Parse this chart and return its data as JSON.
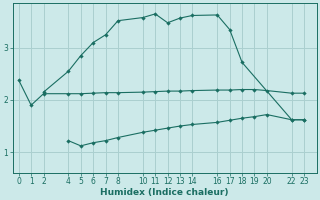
{
  "xlabel": "Humidex (Indice chaleur)",
  "bg_color": "#cce9e9",
  "grid_color": "#aacfcf",
  "line_color": "#1a6e62",
  "xticks": [
    0,
    1,
    2,
    4,
    5,
    6,
    7,
    8,
    10,
    11,
    12,
    13,
    14,
    16,
    17,
    18,
    19,
    20,
    22,
    23
  ],
  "yticks": [
    1,
    2,
    3
  ],
  "ylim": [
    0.6,
    3.85
  ],
  "xlim": [
    -0.5,
    24.0
  ],
  "upper_x": [
    2,
    4,
    5,
    6,
    7,
    8,
    10,
    11,
    12,
    13,
    14,
    16,
    17,
    18,
    22,
    23
  ],
  "upper_y": [
    2.15,
    2.55,
    2.85,
    3.1,
    3.25,
    3.52,
    3.58,
    3.65,
    3.48,
    3.57,
    3.62,
    3.63,
    3.35,
    2.72,
    1.62,
    1.62
  ],
  "middle_x": [
    0,
    1,
    2,
    4,
    5,
    6,
    7,
    8,
    10,
    11,
    12,
    13,
    14,
    16,
    17,
    18,
    19,
    20,
    22,
    23
  ],
  "middle_y": [
    2.38,
    1.9,
    2.12,
    2.12,
    2.12,
    2.13,
    2.14,
    2.14,
    2.15,
    2.16,
    2.17,
    2.17,
    2.18,
    2.19,
    2.19,
    2.2,
    2.2,
    2.18,
    2.13,
    2.13
  ],
  "lower_x": [
    4,
    5,
    6,
    7,
    8,
    10,
    11,
    12,
    13,
    14,
    16,
    17,
    18,
    19,
    20,
    22,
    23
  ],
  "lower_y": [
    1.22,
    1.12,
    1.18,
    1.22,
    1.28,
    1.38,
    1.42,
    1.46,
    1.5,
    1.53,
    1.57,
    1.61,
    1.65,
    1.68,
    1.72,
    1.62,
    1.62
  ]
}
